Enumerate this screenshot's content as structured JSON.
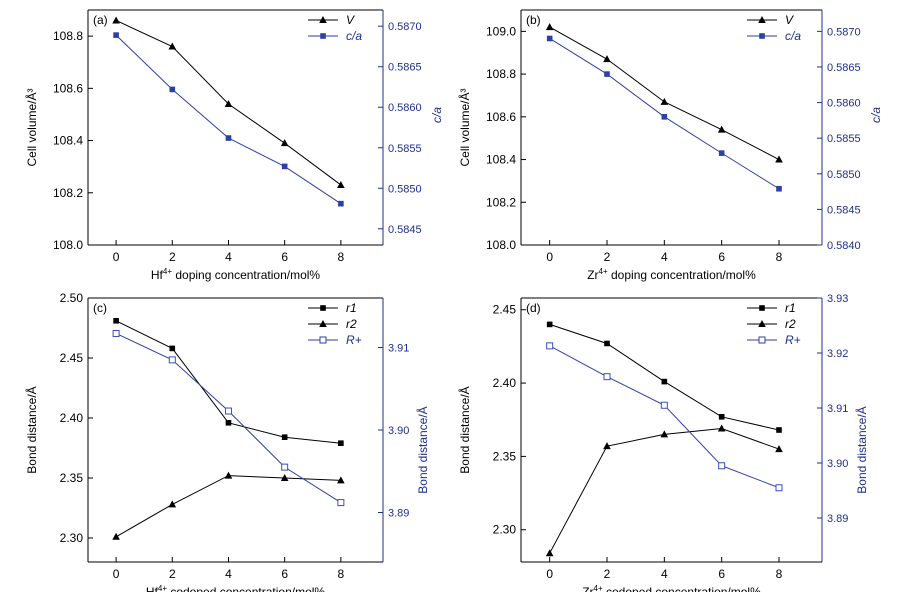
{
  "colors": {
    "black": "#000000",
    "blue": "#1f2f8f",
    "blue_line": "#2e3fa6",
    "blue_marker": "#3a4ec0"
  },
  "chart_data": [
    {
      "panel": "(a)",
      "type": "line",
      "x": [
        0,
        2,
        4,
        6,
        8
      ],
      "xticks": [
        "0",
        "2",
        "4",
        "6",
        "8"
      ],
      "xlim": [
        -1,
        9.5
      ],
      "xlabel_base": "Hf",
      "xlabel_sup": "4+",
      "xlabel_rest": " doping concentration/mol%",
      "ylabel_left": "Cell volume/Å³",
      "ylabel_right": "c/a",
      "ylim_left": [
        108.0,
        108.9
      ],
      "yticks_left": [
        "108.0",
        "108.2",
        "108.4",
        "108.6",
        "108.8"
      ],
      "ylim_right": [
        0.5843,
        0.5872
      ],
      "yticks_right": [
        "0.5845",
        "0.5850",
        "0.5855",
        "0.5860",
        "0.5865",
        "0.5870"
      ],
      "legend_position": "top-right",
      "series": [
        {
          "name": "V",
          "axis": "left",
          "marker": "triangle-filled",
          "color": "#000000",
          "values": [
            108.86,
            108.76,
            108.54,
            108.39,
            108.23
          ]
        },
        {
          "name": "c/a",
          "axis": "right",
          "marker": "square-filled",
          "color": "#1f2f8f",
          "values": [
            0.58689,
            0.58622,
            0.58562,
            0.58527,
            0.58481
          ]
        }
      ]
    },
    {
      "panel": "(b)",
      "type": "line",
      "x": [
        0,
        2,
        4,
        6,
        8
      ],
      "xticks": [
        "0",
        "2",
        "4",
        "6",
        "8"
      ],
      "xlim": [
        -1,
        9.5
      ],
      "xlabel_base": "Zr",
      "xlabel_sup": "4+",
      "xlabel_rest": " doping concentration/mol%",
      "ylabel_left": "Cell volume/Å³",
      "ylabel_right": "c/a",
      "ylim_left": [
        108.0,
        109.1
      ],
      "yticks_left": [
        "108.0",
        "108.2",
        "108.4",
        "108.6",
        "108.8",
        "109.0"
      ],
      "ylim_right": [
        0.584,
        0.5873
      ],
      "yticks_right": [
        "0.5840",
        "0.5845",
        "0.5850",
        "0.5855",
        "0.5860",
        "0.5865",
        "0.5870"
      ],
      "legend_position": "top-right",
      "series": [
        {
          "name": "V",
          "axis": "left",
          "marker": "triangle-filled",
          "color": "#000000",
          "values": [
            109.02,
            108.87,
            108.67,
            108.54,
            108.4
          ]
        },
        {
          "name": "c/a",
          "axis": "right",
          "marker": "square-filled",
          "color": "#1f2f8f",
          "values": [
            0.5869,
            0.5864,
            0.5858,
            0.58529,
            0.58479
          ]
        }
      ]
    },
    {
      "panel": "(c)",
      "type": "line",
      "x": [
        0,
        2,
        4,
        6,
        8
      ],
      "xticks": [
        "0",
        "2",
        "4",
        "6",
        "8"
      ],
      "xlim": [
        -1,
        9.5
      ],
      "xlabel_base": "Hf",
      "xlabel_sup": "4+",
      "xlabel_rest": " codoped concentration/mol%",
      "ylabel_left": "Bond distance/Å",
      "ylabel_right": "Bond distance/Å",
      "ylim_left": [
        2.28,
        2.5
      ],
      "yticks_left": [
        "2.30",
        "2.35",
        "2.40",
        "2.45",
        "2.50"
      ],
      "ylim_right": [
        3.884,
        3.916
      ],
      "yticks_right": [
        "3.89",
        "3.90",
        "3.91"
      ],
      "legend_position": "top-right",
      "series": [
        {
          "name": "r1",
          "axis": "left",
          "marker": "square-filled",
          "color": "#000000",
          "values": [
            2.481,
            2.458,
            2.396,
            2.384,
            2.379
          ]
        },
        {
          "name": "r2",
          "axis": "left",
          "marker": "triangle-filled",
          "color": "#000000",
          "values": [
            2.301,
            2.328,
            2.352,
            2.35,
            2.348
          ]
        },
        {
          "name": "R+",
          "axis": "right",
          "marker": "square-open",
          "color": "#1f2f8f",
          "values": [
            3.9117,
            3.9085,
            3.9023,
            3.8955,
            3.8912
          ]
        }
      ]
    },
    {
      "panel": "(d)",
      "type": "line",
      "x": [
        0,
        2,
        4,
        6,
        8
      ],
      "xticks": [
        "0",
        "2",
        "4",
        "6",
        "8"
      ],
      "xlim": [
        -1,
        9.5
      ],
      "xlabel_base": "Zr",
      "xlabel_sup": "4+",
      "xlabel_rest": " codoped concentration/mol%",
      "ylabel_left": "Bond distance/Å",
      "ylabel_right": "Bond distance/Å",
      "ylim_left": [
        2.278,
        2.458
      ],
      "yticks_left": [
        "2.30",
        "2.35",
        "2.40",
        "2.45"
      ],
      "ylim_right": [
        3.882,
        3.93
      ],
      "yticks_right": [
        "3.89",
        "3.90",
        "3.91",
        "3.92",
        "3.93"
      ],
      "legend_position": "top-right",
      "series": [
        {
          "name": "r1",
          "axis": "left",
          "marker": "square-filled",
          "color": "#000000",
          "values": [
            2.44,
            2.427,
            2.401,
            2.377,
            2.368
          ]
        },
        {
          "name": "r2",
          "axis": "left",
          "marker": "triangle-filled",
          "color": "#000000",
          "values": [
            2.284,
            2.357,
            2.365,
            2.369,
            2.355
          ]
        },
        {
          "name": "R+",
          "axis": "right",
          "marker": "square-open",
          "color": "#1f2f8f",
          "values": [
            3.9213,
            3.9157,
            3.9105,
            3.8995,
            3.8955
          ]
        }
      ]
    }
  ]
}
